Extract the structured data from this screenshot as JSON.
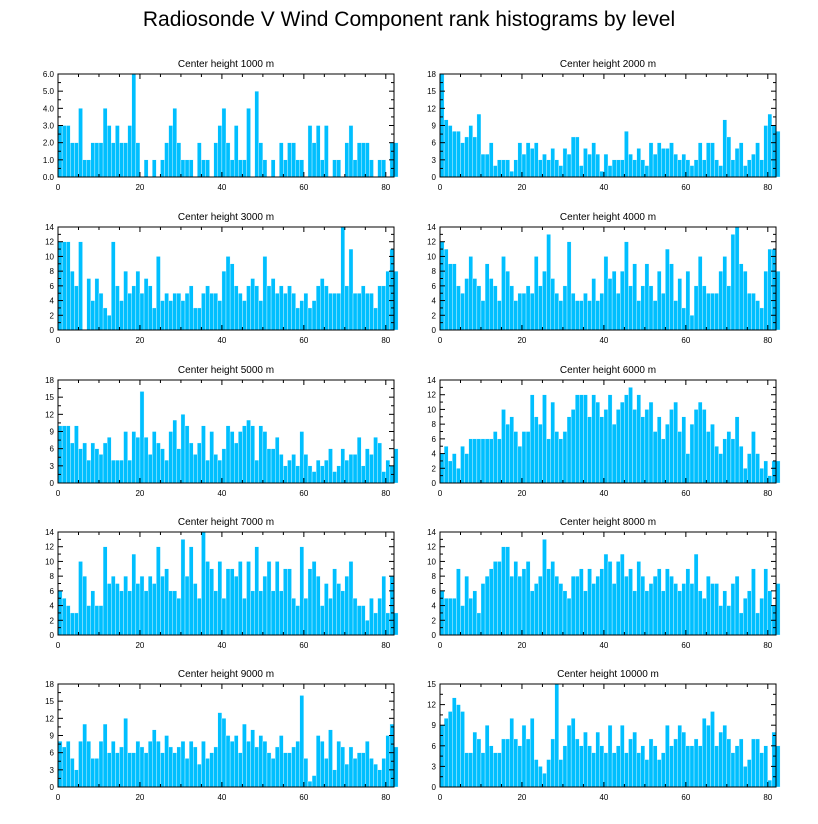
{
  "title": "Radiosonde V Wind Component rank histograms by level",
  "bar_color": "#00bfff",
  "bar_edge_color": "#ffffff",
  "chart_data": [
    {
      "type": "bar",
      "title": "Center height 1000 m",
      "xlim": [
        0,
        82
      ],
      "ylim": [
        0,
        6
      ],
      "xticks": [
        0,
        20,
        40,
        60,
        80
      ],
      "yticks": [
        0,
        1,
        2,
        3,
        4,
        5,
        6
      ],
      "ytick_labels": [
        "0.0",
        "1.0",
        "2.0",
        "3.0",
        "4.0",
        "5.0",
        "6.0"
      ],
      "values": [
        3,
        3,
        3,
        2,
        2,
        4,
        1,
        1,
        2,
        2,
        2,
        4,
        3,
        2,
        3,
        2,
        2,
        3,
        6,
        2,
        0,
        1,
        0,
        1,
        0,
        1,
        2,
        3,
        4,
        2,
        1,
        1,
        1,
        0,
        2,
        1,
        1,
        0,
        2,
        3,
        4,
        2,
        1,
        3,
        1,
        1,
        4,
        0,
        5,
        2,
        1,
        0,
        1,
        0,
        2,
        1,
        2,
        2,
        1,
        1,
        0,
        3,
        2,
        3,
        1,
        3,
        0,
        1,
        1,
        0,
        2,
        3,
        1,
        2,
        2,
        2,
        1,
        0,
        1,
        1,
        0,
        2,
        2
      ]
    },
    {
      "type": "bar",
      "title": "Center height 2000 m",
      "xlim": [
        0,
        82
      ],
      "ylim": [
        0,
        18
      ],
      "xticks": [
        0,
        20,
        40,
        60,
        80
      ],
      "yticks": [
        0,
        3,
        6,
        9,
        12,
        15,
        18
      ],
      "ytick_labels": [
        "0",
        "3",
        "6",
        "9",
        "12",
        "15",
        "18"
      ],
      "values": [
        18,
        10,
        9,
        8,
        8,
        6,
        7,
        9,
        7,
        11,
        4,
        4,
        6,
        2,
        3,
        3,
        3,
        1,
        3,
        6,
        4,
        6,
        5,
        6,
        3,
        4,
        3,
        5,
        3,
        2,
        5,
        4,
        7,
        7,
        2,
        5,
        4,
        6,
        4,
        1,
        4,
        2,
        3,
        3,
        3,
        8,
        4,
        3,
        5,
        3,
        2,
        6,
        4,
        6,
        5,
        5,
        6,
        4,
        3,
        4,
        3,
        2,
        3,
        6,
        3,
        6,
        6,
        3,
        2,
        10,
        7,
        3,
        5,
        6,
        2,
        3,
        4,
        6,
        3,
        9,
        11,
        9,
        8
      ]
    },
    {
      "type": "bar",
      "title": "Center height 3000 m",
      "xlim": [
        0,
        82
      ],
      "ylim": [
        0,
        14
      ],
      "xticks": [
        0,
        20,
        40,
        60,
        80
      ],
      "yticks": [
        0,
        2,
        4,
        6,
        8,
        10,
        12,
        14
      ],
      "ytick_labels": [
        "0",
        "2",
        "4",
        "6",
        "8",
        "10",
        "12",
        "14"
      ],
      "values": [
        12,
        12,
        12,
        8,
        6,
        12,
        0,
        7,
        4,
        7,
        5,
        3,
        2,
        12,
        6,
        4,
        8,
        5,
        6,
        8,
        5,
        7,
        6,
        3,
        10,
        4,
        5,
        4,
        5,
        5,
        4,
        5,
        6,
        3,
        3,
        5,
        6,
        5,
        5,
        4,
        8,
        10,
        9,
        6,
        5,
        4,
        6,
        7,
        6,
        4,
        10,
        6,
        7,
        5,
        6,
        5,
        6,
        5,
        3,
        4,
        5,
        3,
        4,
        6,
        7,
        6,
        5,
        5,
        5,
        14,
        6,
        11,
        5,
        5,
        6,
        5,
        5,
        3,
        6,
        6,
        8,
        11,
        8
      ]
    },
    {
      "type": "bar",
      "title": "Center height 4000 m",
      "xlim": [
        0,
        82
      ],
      "ylim": [
        0,
        14
      ],
      "xticks": [
        0,
        20,
        40,
        60,
        80
      ],
      "yticks": [
        0,
        2,
        4,
        6,
        8,
        10,
        12,
        14
      ],
      "ytick_labels": [
        "0",
        "2",
        "4",
        "6",
        "8",
        "10",
        "12",
        "14"
      ],
      "values": [
        12,
        11,
        9,
        9,
        6,
        5,
        7,
        10,
        7,
        6,
        4,
        9,
        7,
        6,
        4,
        10,
        8,
        6,
        4,
        5,
        5,
        6,
        5,
        10,
        6,
        8,
        13,
        7,
        5,
        4,
        6,
        12,
        5,
        4,
        4,
        5,
        4,
        7,
        4,
        5,
        10,
        7,
        8,
        5,
        8,
        12,
        6,
        9,
        4,
        6,
        9,
        6,
        4,
        8,
        5,
        11,
        9,
        4,
        7,
        3,
        8,
        2,
        6,
        10,
        6,
        5,
        5,
        5,
        8,
        10,
        6,
        13,
        14,
        9,
        8,
        5,
        5,
        4,
        3,
        8,
        11,
        11,
        8
      ]
    },
    {
      "type": "bar",
      "title": "Center height 5000 m",
      "xlim": [
        0,
        82
      ],
      "ylim": [
        0,
        18
      ],
      "xticks": [
        0,
        20,
        40,
        60,
        80
      ],
      "yticks": [
        0,
        3,
        6,
        9,
        12,
        15,
        18
      ],
      "ytick_labels": [
        "0",
        "3",
        "6",
        "9",
        "12",
        "15",
        "18"
      ],
      "values": [
        10,
        10,
        10,
        7,
        10,
        6,
        7,
        4,
        7,
        6,
        5,
        7,
        8,
        4,
        4,
        4,
        9,
        4,
        9,
        8,
        16,
        8,
        5,
        9,
        7,
        6,
        4,
        9,
        11,
        6,
        12,
        10,
        7,
        5,
        7,
        10,
        4,
        9,
        5,
        4,
        6,
        10,
        9,
        7,
        9,
        10,
        11,
        10,
        4,
        10,
        9,
        6,
        6,
        8,
        5,
        3,
        4,
        5,
        3,
        9,
        5,
        3,
        2,
        4,
        3,
        4,
        6,
        2,
        3,
        6,
        4,
        5,
        5,
        8,
        3,
        6,
        5,
        8,
        7,
        2,
        4,
        3,
        6
      ]
    },
    {
      "type": "bar",
      "title": "Center height 6000 m",
      "xlim": [
        0,
        82
      ],
      "ylim": [
        0,
        14
      ],
      "xticks": [
        0,
        20,
        40,
        60,
        80
      ],
      "yticks": [
        0,
        2,
        4,
        6,
        8,
        10,
        12,
        14
      ],
      "ytick_labels": [
        "0",
        "2",
        "4",
        "6",
        "8",
        "10",
        "12",
        "14"
      ],
      "values": [
        4,
        5,
        3,
        4,
        2,
        5,
        4,
        6,
        6,
        6,
        6,
        6,
        6,
        7,
        6,
        10,
        8,
        9,
        7,
        5,
        7,
        7,
        12,
        9,
        8,
        12,
        6,
        11,
        7,
        6,
        7,
        9,
        10,
        12,
        12,
        12,
        9,
        12,
        11,
        9,
        10,
        12,
        8,
        10,
        11,
        12,
        13,
        10,
        12,
        9,
        10,
        11,
        7,
        9,
        6,
        8,
        10,
        11,
        7,
        9,
        4,
        8,
        10,
        11,
        10,
        7,
        8,
        5,
        4,
        6,
        7,
        6,
        9,
        5,
        2,
        4,
        7,
        4,
        2,
        3,
        1,
        3,
        3
      ]
    },
    {
      "type": "bar",
      "title": "Center height 7000 m",
      "xlim": [
        0,
        82
      ],
      "ylim": [
        0,
        14
      ],
      "xticks": [
        0,
        20,
        40,
        60,
        80
      ],
      "yticks": [
        0,
        2,
        4,
        6,
        8,
        10,
        12,
        14
      ],
      "ytick_labels": [
        "0",
        "2",
        "4",
        "6",
        "8",
        "10",
        "12",
        "14"
      ],
      "values": [
        6,
        5,
        4,
        3,
        3,
        10,
        8,
        4,
        6,
        4,
        4,
        12,
        7,
        8,
        7,
        6,
        8,
        6,
        11,
        7,
        8,
        6,
        8,
        7,
        12,
        8,
        9,
        6,
        6,
        5,
        13,
        8,
        12,
        7,
        5,
        14,
        10,
        9,
        6,
        10,
        5,
        9,
        9,
        8,
        10,
        5,
        10,
        6,
        12,
        6,
        8,
        10,
        6,
        10,
        6,
        9,
        9,
        5,
        4,
        12,
        5,
        9,
        10,
        8,
        4,
        7,
        5,
        9,
        7,
        6,
        8,
        10,
        5,
        4,
        4,
        2,
        5,
        3,
        5,
        8,
        3,
        8,
        3
      ]
    },
    {
      "type": "bar",
      "title": "Center height 8000 m",
      "xlim": [
        0,
        82
      ],
      "ylim": [
        0,
        14
      ],
      "xticks": [
        0,
        20,
        40,
        60,
        80
      ],
      "yticks": [
        0,
        2,
        4,
        6,
        8,
        10,
        12,
        14
      ],
      "ytick_labels": [
        "0",
        "2",
        "4",
        "6",
        "8",
        "10",
        "12",
        "14"
      ],
      "values": [
        6,
        5,
        5,
        5,
        9,
        4,
        8,
        5,
        6,
        3,
        7,
        8,
        9,
        10,
        10,
        12,
        12,
        8,
        10,
        8,
        9,
        10,
        6,
        7,
        8,
        13,
        9,
        10,
        8,
        7,
        6,
        5,
        8,
        8,
        9,
        6,
        9,
        7,
        8,
        9,
        11,
        10,
        7,
        10,
        11,
        8,
        9,
        6,
        10,
        8,
        6,
        7,
        8,
        9,
        6,
        9,
        8,
        7,
        6,
        7,
        9,
        7,
        11,
        6,
        5,
        8,
        7,
        7,
        4,
        6,
        4,
        7,
        8,
        3,
        5,
        6,
        9,
        3,
        5,
        9,
        6,
        4,
        7
      ]
    },
    {
      "type": "bar",
      "title": "Center height 9000 m",
      "xlim": [
        0,
        82
      ],
      "ylim": [
        0,
        18
      ],
      "xticks": [
        0,
        20,
        40,
        60,
        80
      ],
      "yticks": [
        0,
        3,
        6,
        9,
        12,
        15,
        18
      ],
      "ytick_labels": [
        "0",
        "3",
        "6",
        "9",
        "12",
        "15",
        "18"
      ],
      "values": [
        8,
        7,
        8,
        5,
        3,
        8,
        11,
        8,
        5,
        5,
        8,
        11,
        6,
        8,
        6,
        7,
        12,
        6,
        6,
        8,
        7,
        6,
        8,
        10,
        8,
        6,
        9,
        7,
        6,
        7,
        8,
        5,
        8,
        7,
        4,
        8,
        5,
        6,
        7,
        13,
        12,
        9,
        8,
        9,
        6,
        11,
        8,
        10,
        7,
        9,
        8,
        6,
        5,
        7,
        9,
        6,
        6,
        7,
        8,
        16,
        5,
        1,
        2,
        9,
        8,
        5,
        10,
        3,
        8,
        7,
        4,
        7,
        5,
        6,
        6,
        8,
        5,
        4,
        3,
        5,
        9,
        11,
        7
      ]
    },
    {
      "type": "bar",
      "title": "Center height 10000 m",
      "xlim": [
        0,
        82
      ],
      "ylim": [
        0,
        15
      ],
      "xticks": [
        0,
        20,
        40,
        60,
        80
      ],
      "yticks": [
        0,
        3,
        6,
        9,
        12,
        15
      ],
      "ytick_labels": [
        "0",
        "3",
        "6",
        "9",
        "12",
        "15"
      ],
      "values": [
        9,
        10,
        11,
        13,
        12,
        11,
        5,
        5,
        8,
        7,
        5,
        9,
        6,
        5,
        5,
        7,
        7,
        10,
        7,
        6,
        9,
        7,
        10,
        4,
        3,
        2,
        4,
        7,
        15,
        4,
        6,
        9,
        10,
        7,
        6,
        8,
        6,
        5,
        8,
        6,
        5,
        9,
        5,
        6,
        9,
        5,
        7,
        8,
        5,
        6,
        4,
        7,
        6,
        4,
        5,
        9,
        6,
        7,
        9,
        8,
        6,
        6,
        7,
        6,
        10,
        9,
        11,
        6,
        8,
        9,
        7,
        5,
        6,
        7,
        3,
        4,
        7,
        7,
        5,
        6,
        1,
        8,
        6
      ]
    }
  ]
}
